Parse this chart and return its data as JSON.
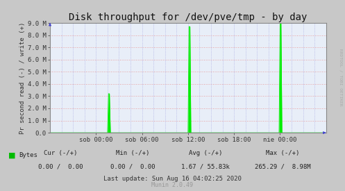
{
  "title": "Disk throughput for /dev/pve/tmp - by day",
  "ylabel": "Pr second read (-) / write (+)",
  "right_label": "RRDTOOL / TOBI OETIKER",
  "background_color": "#c8c8c8",
  "plot_bg_color": "#e8eef8",
  "grid_color_h": "#e8a0a0",
  "grid_color_v": "#a0a0e0",
  "line_color": "#00ee00",
  "border_color": "#888888",
  "ylim": [
    0.0,
    9000000
  ],
  "yticks": [
    0.0,
    1000000,
    2000000,
    3000000,
    4000000,
    5000000,
    6000000,
    7000000,
    8000000,
    9000000
  ],
  "ytick_labels": [
    "0.0",
    "1.0 M",
    "2.0 M",
    "3.0 M",
    "4.0 M",
    "5.0 M",
    "6.0 M",
    "7.0 M",
    "8.0 M",
    "9.0 M"
  ],
  "xlim": [
    0,
    288
  ],
  "xtick_positions": [
    48,
    96,
    144,
    192,
    240
  ],
  "xtick_labels": [
    "sob 00:00",
    "sob 06:00",
    "sob 12:00",
    "sob 18:00",
    "nie 00:00"
  ],
  "spike1_x": 62,
  "spike1_y": 3200000,
  "spike2_x": 146,
  "spike2_y": 8700000,
  "spike3_x": 241,
  "spike3_y": 9000000,
  "legend_label": "Bytes",
  "legend_color": "#00bb00",
  "cur_label": "Cur (-/+)",
  "cur_value": "0.00 /  0.00",
  "min_label": "Min (-/+)",
  "min_value": "0.00 /  0.00",
  "avg_label": "Avg (-/+)",
  "avg_value": "1.67 / 55.83k",
  "max_label": "Max (-/+)",
  "max_value": "265.29 /  8.98M",
  "last_update": "Last update: Sun Aug 16 04:02:25 2020",
  "munin_label": "Munin 2.0.49",
  "title_fontsize": 10,
  "axis_fontsize": 6.5,
  "tick_fontsize": 6.5,
  "bottom_fontsize": 6.5
}
